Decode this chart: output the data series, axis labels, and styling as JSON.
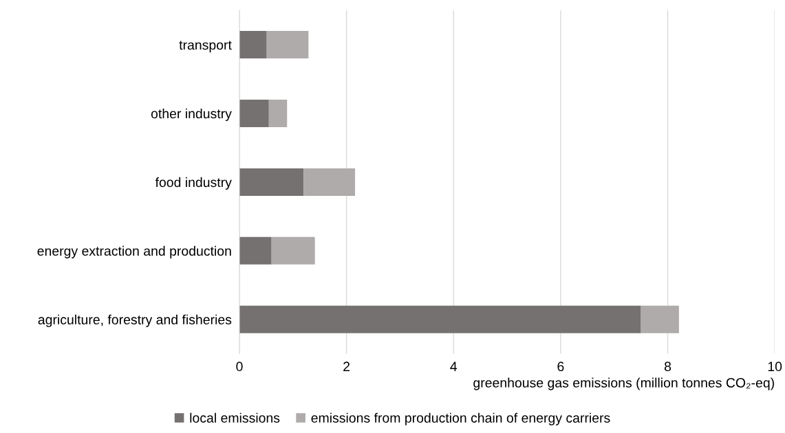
{
  "chart_data": {
    "type": "bar",
    "orientation": "horizontal",
    "stacked": true,
    "categories": [
      "transport",
      "other industry",
      "food industry",
      "energy extraction and production",
      "agriculture, forestry and fisheries"
    ],
    "series": [
      {
        "name": "local emissions",
        "color": "#767171",
        "values": [
          0.51,
          0.55,
          1.2,
          0.6,
          7.5
        ]
      },
      {
        "name": "emissions from production chain of energy carriers",
        "color": "#afabab",
        "values": [
          0.78,
          0.34,
          0.96,
          0.81,
          0.71
        ]
      }
    ],
    "xlabel": "greenhouse gas emissions (million tonnes CO₂-eq)",
    "xlim": [
      0,
      10
    ],
    "xticks": [
      0,
      2,
      4,
      6,
      8,
      10
    ],
    "grid": "x",
    "legend": "bottom"
  }
}
